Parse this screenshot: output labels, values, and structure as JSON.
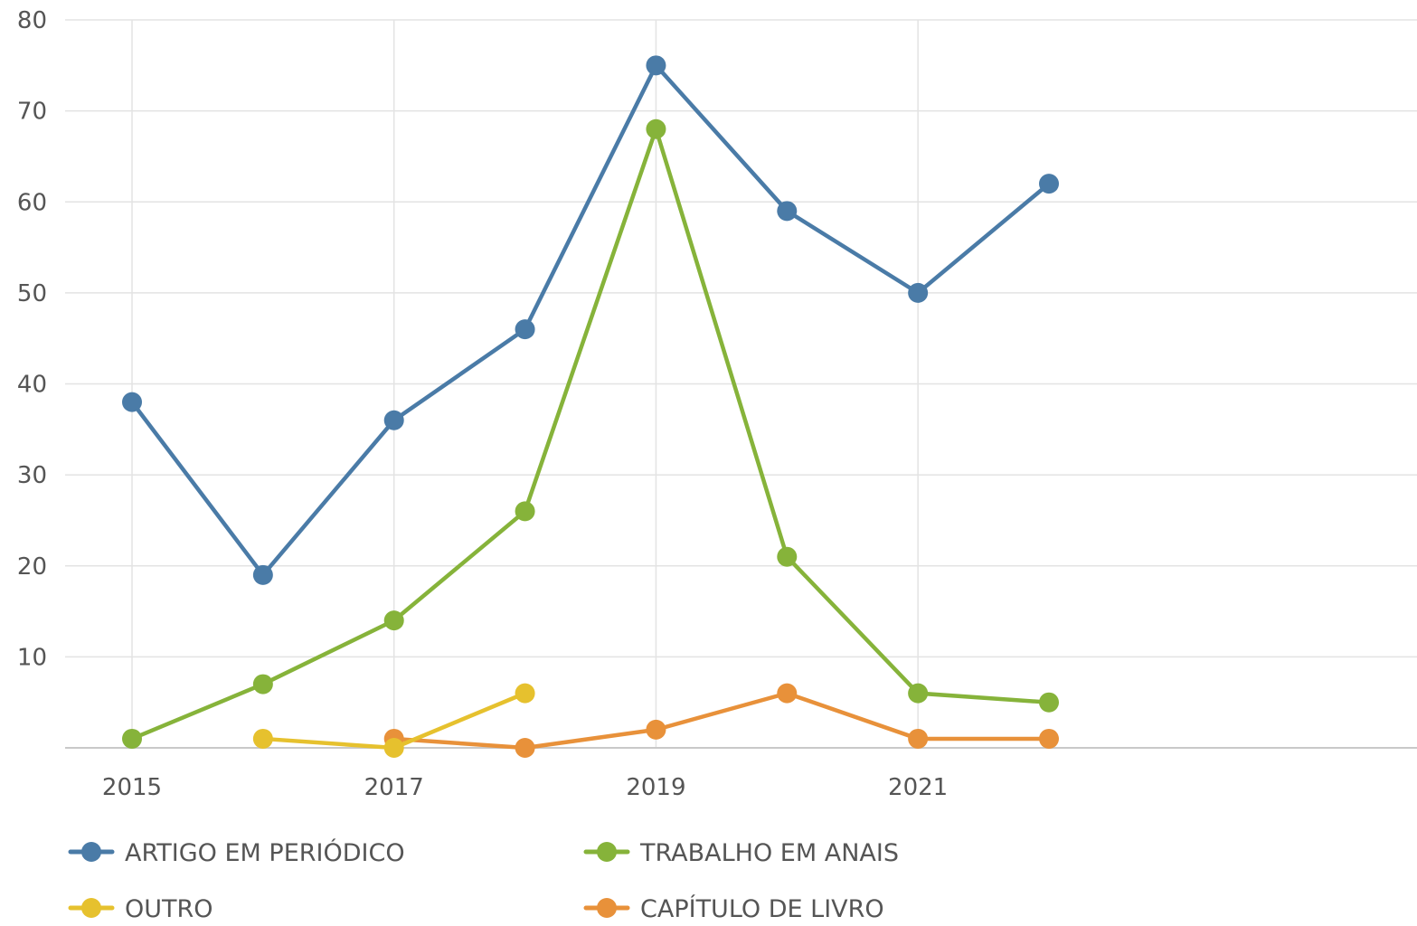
{
  "chart_data": {
    "type": "line",
    "x": [
      2015,
      2016,
      2017,
      2018,
      2019,
      2020,
      2021,
      2022
    ],
    "xticks": [
      "2015",
      "2017",
      "2019",
      "2021"
    ],
    "yticks": [
      "10",
      "20",
      "30",
      "40",
      "50",
      "60",
      "70",
      "80"
    ],
    "ylim": [
      0,
      80
    ],
    "grid": true,
    "legend": "bottom",
    "series": [
      {
        "name": "ARTIGO EM PERIÓDICO",
        "color": "#4a7ba7",
        "points": [
          [
            2015,
            38
          ],
          [
            2016,
            19
          ],
          [
            2017,
            36
          ],
          [
            2018,
            46
          ],
          [
            2019,
            75
          ],
          [
            2020,
            59
          ],
          [
            2021,
            50
          ],
          [
            2022,
            62
          ]
        ]
      },
      {
        "name": "TRABALHO EM ANAIS",
        "color": "#86b33a",
        "points": [
          [
            2015,
            1
          ],
          [
            2016,
            7
          ],
          [
            2017,
            14
          ],
          [
            2018,
            26
          ],
          [
            2019,
            68
          ],
          [
            2020,
            21
          ],
          [
            2021,
            6
          ],
          [
            2022,
            5
          ]
        ]
      },
      {
        "name": "OUTRO",
        "color": "#e6c12e",
        "points": [
          [
            2016,
            1
          ],
          [
            2017,
            0
          ],
          [
            2018,
            6
          ]
        ]
      },
      {
        "name": "CAPÍTULO DE LIVRO",
        "color": "#e8913a",
        "points": [
          [
            2017,
            1
          ],
          [
            2018,
            0
          ],
          [
            2019,
            2
          ],
          [
            2020,
            6
          ],
          [
            2021,
            1
          ],
          [
            2022,
            1
          ]
        ]
      }
    ]
  }
}
